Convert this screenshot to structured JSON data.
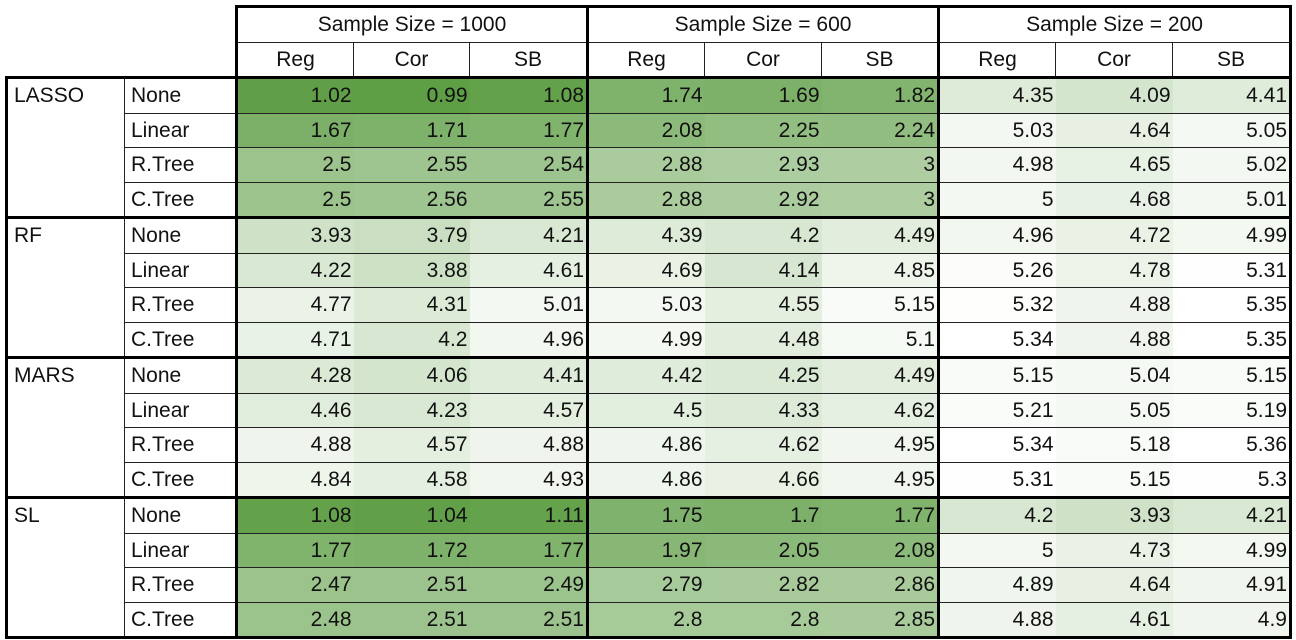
{
  "chart_data": {
    "type": "table",
    "sample_sizes": [
      "Sample Size = 1000",
      "Sample Size = 600",
      "Sample Size = 200"
    ],
    "metrics": [
      "Reg",
      "Cor",
      "SB"
    ],
    "colors": {
      "low": "#5e9e45",
      "high": "#ffffff"
    },
    "models": [
      {
        "name": "LASSO",
        "rows": [
          {
            "method": "None",
            "values": [
              1.02,
              0.99,
              1.08,
              1.74,
              1.69,
              1.82,
              4.35,
              4.09,
              4.41
            ]
          },
          {
            "method": "Linear",
            "values": [
              1.67,
              1.71,
              1.77,
              2.08,
              2.25,
              2.24,
              5.03,
              4.64,
              5.05
            ]
          },
          {
            "method": "R.Tree",
            "values": [
              2.5,
              2.55,
              2.54,
              2.88,
              2.93,
              3,
              4.98,
              4.65,
              5.02
            ]
          },
          {
            "method": "C.Tree",
            "values": [
              2.5,
              2.56,
              2.55,
              2.88,
              2.92,
              3,
              5,
              4.68,
              5.01
            ]
          }
        ]
      },
      {
        "name": "RF",
        "rows": [
          {
            "method": "None",
            "values": [
              3.93,
              3.79,
              4.21,
              4.39,
              4.2,
              4.49,
              4.96,
              4.72,
              4.99
            ]
          },
          {
            "method": "Linear",
            "values": [
              4.22,
              3.88,
              4.61,
              4.69,
              4.14,
              4.85,
              5.26,
              4.78,
              5.31
            ]
          },
          {
            "method": "R.Tree",
            "values": [
              4.77,
              4.31,
              5.01,
              5.03,
              4.55,
              5.15,
              5.32,
              4.88,
              5.35
            ]
          },
          {
            "method": "C.Tree",
            "values": [
              4.71,
              4.2,
              4.96,
              4.99,
              4.48,
              5.1,
              5.34,
              4.88,
              5.35
            ]
          }
        ]
      },
      {
        "name": "MARS",
        "rows": [
          {
            "method": "None",
            "values": [
              4.28,
              4.06,
              4.41,
              4.42,
              4.25,
              4.49,
              5.15,
              5.04,
              5.15
            ]
          },
          {
            "method": "Linear",
            "values": [
              4.46,
              4.23,
              4.57,
              4.5,
              4.33,
              4.62,
              5.21,
              5.05,
              5.19
            ]
          },
          {
            "method": "R.Tree",
            "values": [
              4.88,
              4.57,
              4.88,
              4.86,
              4.62,
              4.95,
              5.34,
              5.18,
              5.36
            ]
          },
          {
            "method": "C.Tree",
            "values": [
              4.84,
              4.58,
              4.93,
              4.86,
              4.66,
              4.95,
              5.31,
              5.15,
              5.3
            ]
          }
        ]
      },
      {
        "name": "SL",
        "rows": [
          {
            "method": "None",
            "values": [
              1.08,
              1.04,
              1.11,
              1.75,
              1.7,
              1.77,
              4.2,
              3.93,
              4.21
            ]
          },
          {
            "method": "Linear",
            "values": [
              1.77,
              1.72,
              1.77,
              1.97,
              2.05,
              2.08,
              5,
              4.73,
              4.99
            ]
          },
          {
            "method": "R.Tree",
            "values": [
              2.47,
              2.51,
              2.49,
              2.79,
              2.82,
              2.86,
              4.89,
              4.64,
              4.91
            ]
          },
          {
            "method": "C.Tree",
            "values": [
              2.48,
              2.51,
              2.51,
              2.8,
              2.8,
              2.85,
              4.88,
              4.61,
              4.9
            ]
          }
        ]
      }
    ]
  }
}
